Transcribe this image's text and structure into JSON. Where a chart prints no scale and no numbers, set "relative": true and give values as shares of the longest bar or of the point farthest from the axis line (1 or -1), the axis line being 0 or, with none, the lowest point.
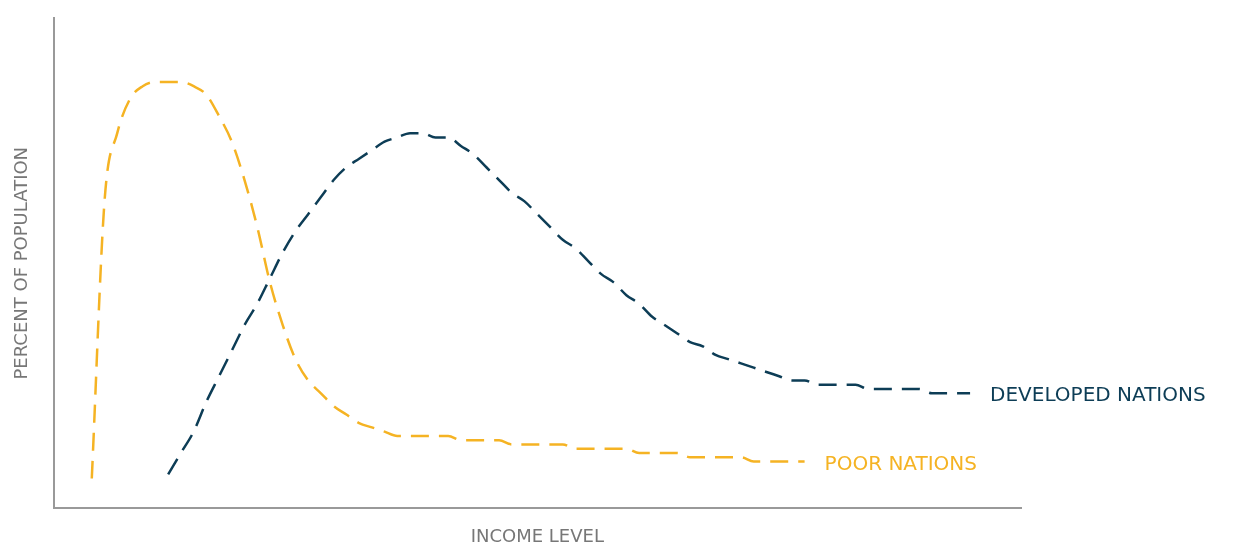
{
  "chart_data": {
    "type": "line",
    "relative": true,
    "xlabel": "INCOME LEVEL",
    "ylabel": "PERCENT OF POPULATION",
    "legend": false,
    "marker": "none",
    "line_style": "dashed",
    "categories": [
      null,
      null,
      null,
      null,
      null,
      null,
      null,
      null,
      null,
      null,
      null,
      null,
      null,
      null,
      null,
      null,
      null,
      null,
      null,
      null,
      null,
      null,
      null,
      null,
      null,
      null,
      null,
      null,
      null,
      null,
      null,
      null,
      null,
      null,
      null,
      null,
      null,
      null,
      null,
      null,
      null,
      null,
      null,
      null,
      null,
      null,
      null,
      null,
      null,
      null,
      null,
      null,
      null,
      null,
      null,
      null,
      null,
      null,
      null,
      null,
      null,
      null,
      null,
      null,
      null,
      null,
      null,
      null,
      null,
      null,
      null,
      null,
      null,
      null,
      null,
      null,
      null
    ],
    "series": [
      {
        "name": "POOR NATIONS",
        "color": "#f5b323",
        "values": [
          null,
          null,
          null,
          0.07,
          0.72,
          0.88,
          0.96,
          0.99,
          1.0,
          1.0,
          1.0,
          0.99,
          0.97,
          0.92,
          0.86,
          0.77,
          0.66,
          0.53,
          0.43,
          0.35,
          0.3,
          0.27,
          0.24,
          0.22,
          0.2,
          0.19,
          0.18,
          0.17,
          0.17,
          0.17,
          0.17,
          0.17,
          0.16,
          0.16,
          0.16,
          0.16,
          0.15,
          0.15,
          0.15,
          0.15,
          0.15,
          0.14,
          0.14,
          0.14,
          0.14,
          0.14,
          0.13,
          0.13,
          0.13,
          0.13,
          0.12,
          0.12,
          0.12,
          0.12,
          0.12,
          0.11,
          0.11,
          0.11,
          0.11,
          0.11,
          null,
          null,
          null,
          null,
          null,
          null,
          null,
          null,
          null,
          null,
          null,
          null,
          null,
          null,
          null,
          null,
          null
        ]
      },
      {
        "name": "DEVELOPED NATIONS",
        "color": "#0d3d56",
        "values": [
          null,
          null,
          null,
          null,
          null,
          null,
          null,
          null,
          null,
          0.08,
          0.13,
          0.18,
          0.25,
          0.31,
          0.37,
          0.43,
          0.48,
          0.54,
          0.6,
          0.65,
          0.69,
          0.73,
          0.77,
          0.8,
          0.82,
          0.84,
          0.86,
          0.87,
          0.88,
          0.88,
          0.87,
          0.87,
          0.85,
          0.83,
          0.8,
          0.77,
          0.74,
          0.72,
          0.69,
          0.66,
          0.63,
          0.61,
          0.58,
          0.55,
          0.53,
          0.5,
          0.48,
          0.45,
          0.43,
          0.41,
          0.39,
          0.38,
          0.36,
          0.35,
          0.34,
          0.33,
          0.32,
          0.31,
          0.3,
          0.3,
          0.29,
          0.29,
          0.29,
          0.29,
          0.28,
          0.28,
          0.28,
          0.28,
          0.28,
          0.27,
          0.27,
          0.27,
          0.27,
          null,
          null,
          null,
          null
        ]
      }
    ]
  }
}
